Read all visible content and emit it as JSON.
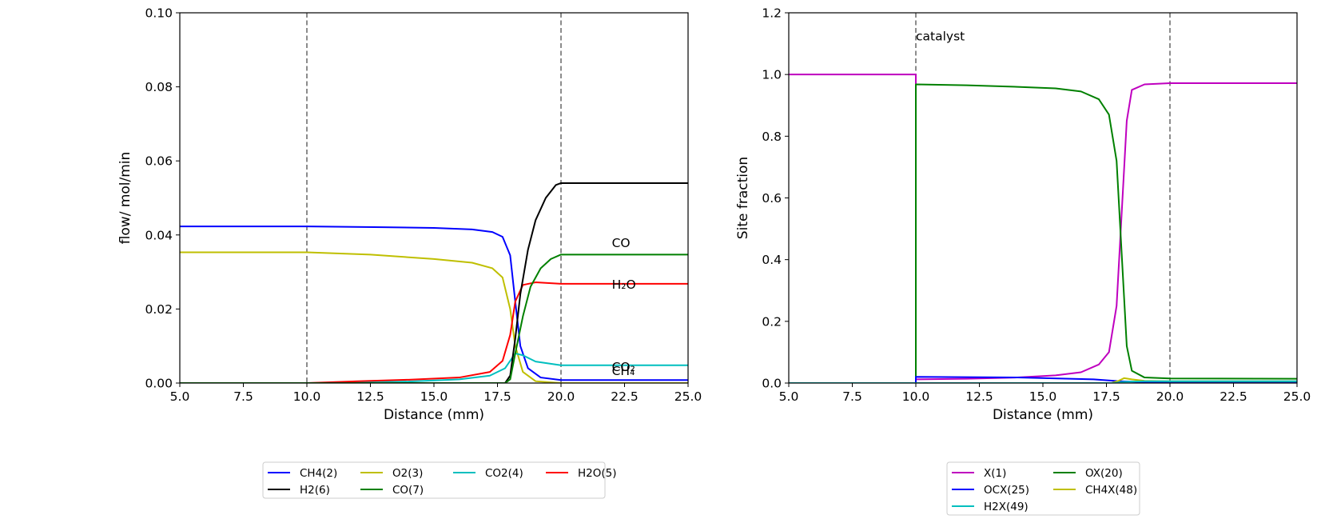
{
  "chart_data": [
    {
      "type": "line",
      "xlabel": "Distance (mm)",
      "ylabel": "flow/ mol/min",
      "xlim": [
        5.0,
        25.0
      ],
      "ylim": [
        0.0,
        0.1
      ],
      "x_ticks": [
        "5.0",
        "7.5",
        "10.0",
        "12.5",
        "15.0",
        "17.5",
        "20.0",
        "22.5",
        "25.0"
      ],
      "y_ticks": [
        "0.00",
        "0.02",
        "0.04",
        "0.06",
        "0.08",
        "0.10"
      ],
      "vlines": [
        10.0,
        20.0
      ],
      "grid": false,
      "legend_position": "below",
      "annotations": [
        {
          "text": "CO",
          "x": 22.0,
          "y": 0.0367
        },
        {
          "text": "H₂O",
          "x": 22.0,
          "y": 0.0255
        },
        {
          "text": "CO₂",
          "x": 22.0,
          "y": 0.0032
        },
        {
          "text": "CH₄",
          "x": 22.0,
          "y": 0.0022
        }
      ],
      "series": [
        {
          "name": "CH4(2)",
          "color": "#0000ff",
          "points": [
            [
              5,
              0.0423
            ],
            [
              10,
              0.0423
            ],
            [
              13,
              0.0421
            ],
            [
              15,
              0.0419
            ],
            [
              16.5,
              0.0415
            ],
            [
              17.3,
              0.0408
            ],
            [
              17.7,
              0.0395
            ],
            [
              18.0,
              0.0345
            ],
            [
              18.2,
              0.022
            ],
            [
              18.4,
              0.01
            ],
            [
              18.7,
              0.004
            ],
            [
              19.2,
              0.0015
            ],
            [
              20,
              0.0008
            ],
            [
              25,
              0.0008
            ]
          ]
        },
        {
          "name": "O2(3)",
          "color": "#bfbf00",
          "points": [
            [
              5,
              0.0353
            ],
            [
              10,
              0.0353
            ],
            [
              12.5,
              0.0347
            ],
            [
              15,
              0.0335
            ],
            [
              16.5,
              0.0325
            ],
            [
              17.3,
              0.031
            ],
            [
              17.7,
              0.0285
            ],
            [
              18.0,
              0.02
            ],
            [
              18.2,
              0.01
            ],
            [
              18.5,
              0.003
            ],
            [
              19.0,
              0.0005
            ],
            [
              20,
              0.0
            ],
            [
              25,
              0.0
            ]
          ]
        },
        {
          "name": "CO2(4)",
          "color": "#00bfbf",
          "points": [
            [
              5,
              0.0
            ],
            [
              10,
              0.0
            ],
            [
              14,
              0.0004
            ],
            [
              16,
              0.001
            ],
            [
              17.2,
              0.002
            ],
            [
              17.8,
              0.004
            ],
            [
              18.2,
              0.008
            ],
            [
              18.5,
              0.0075
            ],
            [
              19.0,
              0.0058
            ],
            [
              20,
              0.0048
            ],
            [
              25,
              0.0048
            ]
          ]
        },
        {
          "name": "H2O(5)",
          "color": "#ff0000",
          "points": [
            [
              5,
              0.0
            ],
            [
              10,
              0.0
            ],
            [
              12,
              0.0005
            ],
            [
              14,
              0.0009
            ],
            [
              16,
              0.0015
            ],
            [
              17.2,
              0.003
            ],
            [
              17.7,
              0.006
            ],
            [
              18.0,
              0.013
            ],
            [
              18.2,
              0.022
            ],
            [
              18.5,
              0.0265
            ],
            [
              19.0,
              0.0272
            ],
            [
              20,
              0.0268
            ],
            [
              25,
              0.0268
            ]
          ]
        },
        {
          "name": "H2(6)",
          "color": "#000000",
          "points": [
            [
              5,
              0.0
            ],
            [
              17.8,
              0.0
            ],
            [
              18.0,
              0.002
            ],
            [
              18.2,
              0.012
            ],
            [
              18.4,
              0.024
            ],
            [
              18.7,
              0.036
            ],
            [
              19.0,
              0.044
            ],
            [
              19.4,
              0.05
            ],
            [
              19.8,
              0.0535
            ],
            [
              20,
              0.054
            ],
            [
              25,
              0.054
            ]
          ]
        },
        {
          "name": "CO(7)",
          "color": "#008000",
          "points": [
            [
              5,
              0.0
            ],
            [
              17.8,
              0.0
            ],
            [
              18.0,
              0.001
            ],
            [
              18.2,
              0.008
            ],
            [
              18.5,
              0.018
            ],
            [
              18.8,
              0.026
            ],
            [
              19.2,
              0.031
            ],
            [
              19.6,
              0.0335
            ],
            [
              20,
              0.0347
            ],
            [
              25,
              0.0347
            ]
          ]
        }
      ]
    },
    {
      "type": "line",
      "xlabel": "Distance (mm)",
      "ylabel": "Site fraction",
      "xlim": [
        5.0,
        25.0
      ],
      "ylim": [
        0.0,
        1.2
      ],
      "x_ticks": [
        "5.0",
        "7.5",
        "10.0",
        "12.5",
        "15.0",
        "17.5",
        "20.0",
        "22.5",
        "25.0"
      ],
      "y_ticks": [
        "0.0",
        "0.2",
        "0.4",
        "0.6",
        "0.8",
        "1.0",
        "1.2"
      ],
      "vlines": [
        10.0,
        20.0
      ],
      "grid": false,
      "legend_position": "below",
      "annotations": [
        {
          "text": "catalyst",
          "x": 10.0,
          "y": 1.11
        }
      ],
      "series": [
        {
          "name": "X(1)",
          "color": "#bf00bf",
          "points": [
            [
              5,
              1.0
            ],
            [
              10,
              1.0
            ],
            [
              10,
              0.012
            ],
            [
              12,
              0.014
            ],
            [
              14,
              0.018
            ],
            [
              15.5,
              0.025
            ],
            [
              16.5,
              0.035
            ],
            [
              17.2,
              0.06
            ],
            [
              17.6,
              0.1
            ],
            [
              17.9,
              0.25
            ],
            [
              18.1,
              0.55
            ],
            [
              18.3,
              0.85
            ],
            [
              18.5,
              0.95
            ],
            [
              19,
              0.968
            ],
            [
              20,
              0.972
            ],
            [
              25,
              0.972
            ]
          ]
        },
        {
          "name": "OX(20)",
          "color": "#008000",
          "points": [
            [
              5,
              0.0
            ],
            [
              10,
              0.0
            ],
            [
              10,
              0.968
            ],
            [
              12,
              0.965
            ],
            [
              14,
              0.96
            ],
            [
              15.5,
              0.955
            ],
            [
              16.5,
              0.945
            ],
            [
              17.2,
              0.92
            ],
            [
              17.6,
              0.87
            ],
            [
              17.9,
              0.72
            ],
            [
              18.1,
              0.42
            ],
            [
              18.3,
              0.12
            ],
            [
              18.5,
              0.04
            ],
            [
              19,
              0.018
            ],
            [
              20,
              0.015
            ],
            [
              25,
              0.014
            ]
          ]
        },
        {
          "name": "OCX(25)",
          "color": "#0000ff",
          "points": [
            [
              5,
              0.0
            ],
            [
              10,
              0.0
            ],
            [
              10,
              0.02
            ],
            [
              14,
              0.018
            ],
            [
              17,
              0.012
            ],
            [
              18,
              0.006
            ],
            [
              19,
              0.003
            ],
            [
              20,
              0.002
            ],
            [
              25,
              0.002
            ]
          ]
        },
        {
          "name": "CH4X(48)",
          "color": "#bfbf00",
          "points": [
            [
              5,
              0.0
            ],
            [
              17.7,
              0.0
            ],
            [
              18.0,
              0.008
            ],
            [
              18.2,
              0.016
            ],
            [
              18.5,
              0.012
            ],
            [
              19,
              0.007
            ],
            [
              20,
              0.006
            ],
            [
              25,
              0.006
            ]
          ]
        },
        {
          "name": "H2X(49)",
          "color": "#00bfbf",
          "points": [
            [
              5,
              0.0
            ],
            [
              17.8,
              0.0
            ],
            [
              18.2,
              0.004
            ],
            [
              19,
              0.006
            ],
            [
              20,
              0.006
            ],
            [
              25,
              0.006
            ]
          ]
        }
      ]
    }
  ]
}
